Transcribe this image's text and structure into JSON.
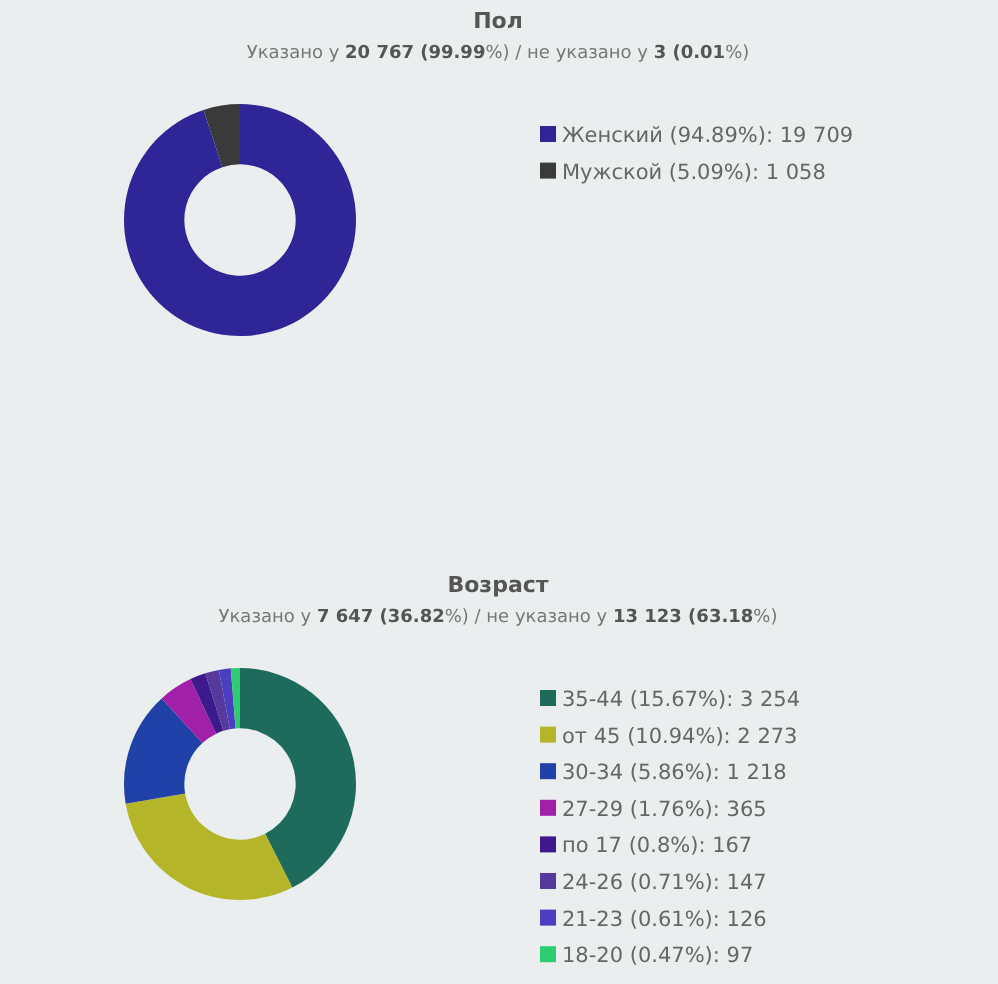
{
  "chart_data": [
    {
      "type": "donut",
      "title": "Пол",
      "subtitle": "Указано у 20 767 (99.99%) / не указано у 3 (0.01%)",
      "categories": [
        "Женский",
        "Мужской"
      ],
      "values": [
        19709,
        1058
      ],
      "value_labels": [
        "(94.89%): 19 709",
        "(5.09%): 1 058"
      ],
      "colors": [
        "#2e2596",
        "#3a3a3a"
      ],
      "legend": "right"
    },
    {
      "type": "donut",
      "title": "Возраст",
      "subtitle": "Указано у 7 647 (36.82%) / не указано у 13 123 (63.18%)",
      "categories": [
        "35-44",
        "от 45",
        "30-34",
        "27-29",
        "по 17",
        "24-26",
        "21-23",
        "18-20"
      ],
      "values": [
        3254,
        2273,
        1218,
        365,
        167,
        147,
        126,
        97
      ],
      "value_labels": [
        "(15.67%): 3 254",
        "(10.94%): 2 273",
        "(5.86%): 1 218",
        "(1.76%): 365",
        "(0.8%): 167",
        "(0.71%): 147",
        "(0.61%): 126",
        "(0.47%): 97"
      ],
      "colors": [
        "#1e6b5c",
        "#b5b52a",
        "#2041a8",
        "#a020a8",
        "#3d1a8c",
        "#553a9c",
        "#4a3fc0",
        "#2ecc71"
      ],
      "legend": "right"
    }
  ]
}
